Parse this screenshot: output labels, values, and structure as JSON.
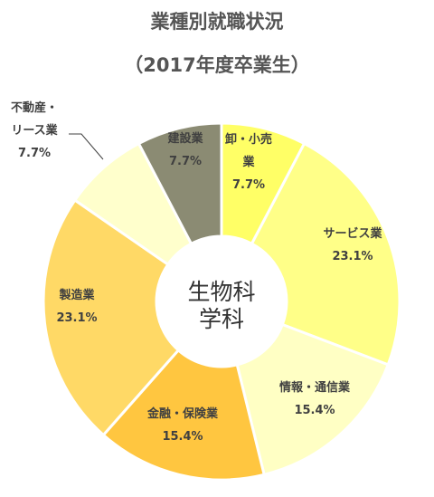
{
  "chart_data": {
    "type": "pie",
    "title": "業種別就職状況",
    "subtitle": "（2017年度卒業生）",
    "center_label": [
      "生物科",
      "学科"
    ],
    "slices": [
      {
        "name": "卸・小売業",
        "label_lines": [
          "卸・小売",
          "業"
        ],
        "percent_label": "7.7%",
        "value": 7.7,
        "color": "#ffff66"
      },
      {
        "name": "サービス業",
        "label_lines": [
          "サービス業"
        ],
        "percent_label": "23.1%",
        "value": 23.1,
        "color": "#ffff88"
      },
      {
        "name": "情報・通信業",
        "label_lines": [
          "情報・通信業"
        ],
        "percent_label": "15.4%",
        "value": 15.4,
        "color": "#ffffc4"
      },
      {
        "name": "金融・保険業",
        "label_lines": [
          "金融・保険業"
        ],
        "percent_label": "15.4%",
        "value": 15.4,
        "color": "#ffc640"
      },
      {
        "name": "製造業",
        "label_lines": [
          "製造業"
        ],
        "percent_label": "23.1%",
        "value": 23.1,
        "color": "#ffd966"
      },
      {
        "name": "不動産・リース業",
        "label_lines": [
          "不動産・",
          "リース業"
        ],
        "percent_label": "7.7%",
        "value": 7.7,
        "color": "#ffffcc"
      },
      {
        "name": "建設業",
        "label_lines": [
          "建設業"
        ],
        "percent_label": "7.7%",
        "value": 7.7,
        "color": "#8b8b73"
      }
    ]
  }
}
